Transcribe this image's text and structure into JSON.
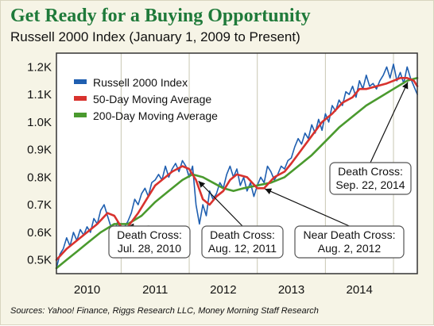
{
  "title": "Get Ready for a Buying Opportunity",
  "subtitle": "Russell 2000 Index (January 1, 2009 to Present)",
  "source": "Sources: Yahoo! Finance, Riggs Research LLC, Money Morning Staff Research",
  "colors": {
    "background": "#f6f4e6",
    "title": "#1f7a3a",
    "russell": "#1f5fb0",
    "ma50": "#d8322e",
    "ma200": "#4a9a2e",
    "grid": "#c9c7b2"
  },
  "chart_data": {
    "type": "line",
    "ylim": [
      0.45,
      1.25
    ],
    "xlim": [
      2009.55,
      2014.85
    ],
    "y_ticks": [
      {
        "value": 0.5,
        "label": "0.5K"
      },
      {
        "value": 0.6,
        "label": "0.6K"
      },
      {
        "value": 0.7,
        "label": "0.7K"
      },
      {
        "value": 0.8,
        "label": "0.8K"
      },
      {
        "value": 0.9,
        "label": "0.9K"
      },
      {
        "value": 1.0,
        "label": "1.0K"
      },
      {
        "value": 1.1,
        "label": "1.1K"
      },
      {
        "value": 1.2,
        "label": "1.2K"
      }
    ],
    "x_ticks": [
      {
        "value": 2010,
        "label": "2010"
      },
      {
        "value": 2011,
        "label": "2011"
      },
      {
        "value": 2012,
        "label": "2012"
      },
      {
        "value": 2013,
        "label": "2013"
      },
      {
        "value": 2014,
        "label": "2014"
      }
    ],
    "grid": "vertical",
    "legend": "top-left",
    "series": [
      {
        "name": "Russell 2000 Index",
        "color": "#1f5fb0",
        "x": [
          2009.55,
          2009.6,
          2009.65,
          2009.7,
          2009.75,
          2009.8,
          2009.85,
          2009.9,
          2009.95,
          2010.0,
          2010.05,
          2010.1,
          2010.15,
          2010.2,
          2010.25,
          2010.3,
          2010.35,
          2010.4,
          2010.45,
          2010.5,
          2010.55,
          2010.6,
          2010.65,
          2010.7,
          2010.75,
          2010.8,
          2010.85,
          2010.9,
          2010.95,
          2011.0,
          2011.05,
          2011.1,
          2011.15,
          2011.2,
          2011.25,
          2011.3,
          2011.35,
          2011.4,
          2011.45,
          2011.5,
          2011.55,
          2011.6,
          2011.65,
          2011.7,
          2011.75,
          2011.8,
          2011.85,
          2011.9,
          2011.95,
          2012.0,
          2012.05,
          2012.1,
          2012.15,
          2012.2,
          2012.25,
          2012.3,
          2012.35,
          2012.4,
          2012.45,
          2012.5,
          2012.55,
          2012.6,
          2012.65,
          2012.7,
          2012.75,
          2012.8,
          2012.85,
          2012.9,
          2012.95,
          2013.0,
          2013.05,
          2013.1,
          2013.15,
          2013.2,
          2013.25,
          2013.3,
          2013.35,
          2013.4,
          2013.45,
          2013.5,
          2013.55,
          2013.6,
          2013.65,
          2013.7,
          2013.75,
          2013.8,
          2013.85,
          2013.9,
          2013.95,
          2014.0,
          2014.05,
          2014.1,
          2014.15,
          2014.2,
          2014.25,
          2014.3,
          2014.35,
          2014.4,
          2014.45,
          2014.5,
          2014.55,
          2014.6,
          2014.65,
          2014.7,
          2014.75,
          2014.8,
          2014.85
        ],
        "values": [
          0.47,
          0.52,
          0.54,
          0.58,
          0.55,
          0.6,
          0.57,
          0.61,
          0.59,
          0.62,
          0.6,
          0.65,
          0.63,
          0.68,
          0.7,
          0.66,
          0.62,
          0.6,
          0.64,
          0.6,
          0.62,
          0.64,
          0.67,
          0.72,
          0.7,
          0.74,
          0.76,
          0.73,
          0.78,
          0.79,
          0.81,
          0.79,
          0.84,
          0.8,
          0.83,
          0.85,
          0.82,
          0.86,
          0.84,
          0.8,
          0.84,
          0.7,
          0.63,
          0.7,
          0.66,
          0.75,
          0.72,
          0.74,
          0.78,
          0.76,
          0.81,
          0.84,
          0.8,
          0.83,
          0.77,
          0.8,
          0.75,
          0.78,
          0.73,
          0.77,
          0.8,
          0.78,
          0.84,
          0.82,
          0.79,
          0.81,
          0.84,
          0.83,
          0.86,
          0.87,
          0.91,
          0.94,
          0.92,
          0.96,
          0.94,
          0.99,
          0.96,
          1.01,
          0.97,
          1.03,
          1.0,
          1.06,
          1.04,
          1.08,
          1.06,
          1.11,
          1.1,
          1.13,
          1.09,
          1.15,
          1.12,
          1.17,
          1.13,
          1.14,
          1.12,
          1.15,
          1.17,
          1.2,
          1.16,
          1.21,
          1.15,
          1.18,
          1.14,
          1.2,
          1.16,
          1.13,
          1.1
        ]
      },
      {
        "name": "50-Day Moving Average",
        "color": "#d8322e",
        "x": [
          2009.55,
          2009.7,
          2009.85,
          2010.0,
          2010.15,
          2010.3,
          2010.4,
          2010.5,
          2010.6,
          2010.75,
          2010.9,
          2011.0,
          2011.1,
          2011.25,
          2011.4,
          2011.5,
          2011.6,
          2011.7,
          2011.8,
          2011.9,
          2012.0,
          2012.1,
          2012.2,
          2012.35,
          2012.5,
          2012.6,
          2012.75,
          2012.9,
          2013.0,
          2013.15,
          2013.3,
          2013.45,
          2013.6,
          2013.75,
          2013.9,
          2014.0,
          2014.1,
          2014.25,
          2014.4,
          2014.5,
          2014.6,
          2014.7,
          2014.8,
          2014.85
        ],
        "values": [
          0.5,
          0.54,
          0.57,
          0.6,
          0.63,
          0.67,
          0.66,
          0.62,
          0.62,
          0.67,
          0.73,
          0.77,
          0.79,
          0.82,
          0.84,
          0.83,
          0.79,
          0.72,
          0.7,
          0.73,
          0.75,
          0.79,
          0.81,
          0.8,
          0.76,
          0.76,
          0.8,
          0.82,
          0.85,
          0.9,
          0.95,
          1.0,
          1.03,
          1.07,
          1.09,
          1.12,
          1.12,
          1.13,
          1.14,
          1.15,
          1.16,
          1.16,
          1.15,
          1.13
        ]
      },
      {
        "name": "200-Day Moving Average",
        "color": "#4a9a2e",
        "x": [
          2009.55,
          2009.7,
          2009.85,
          2010.0,
          2010.2,
          2010.4,
          2010.6,
          2010.8,
          2011.0,
          2011.2,
          2011.4,
          2011.55,
          2011.7,
          2011.85,
          2012.0,
          2012.15,
          2012.3,
          2012.5,
          2012.7,
          2012.9,
          2013.1,
          2013.3,
          2013.5,
          2013.7,
          2013.9,
          2014.1,
          2014.3,
          2014.5,
          2014.7,
          2014.85
        ],
        "values": [
          0.47,
          0.5,
          0.53,
          0.56,
          0.6,
          0.63,
          0.63,
          0.66,
          0.71,
          0.75,
          0.79,
          0.81,
          0.8,
          0.78,
          0.76,
          0.75,
          0.76,
          0.77,
          0.78,
          0.8,
          0.84,
          0.88,
          0.93,
          0.98,
          1.02,
          1.06,
          1.09,
          1.12,
          1.15,
          1.16
        ]
      }
    ],
    "annotations": [
      {
        "lines": [
          "Death Cross:",
          "Jul. 28, 2010"
        ],
        "x": 2010.57,
        "y": 0.62
      },
      {
        "lines": [
          "Death Cross:",
          "Aug. 12, 2011"
        ],
        "x": 2011.62,
        "y": 0.79
      },
      {
        "lines": [
          "Near Death Cross:",
          "Aug. 2, 2012"
        ],
        "x": 2012.59,
        "y": 0.76
      },
      {
        "lines": [
          "Death Cross:",
          "Sep. 22, 2014"
        ],
        "x": 2014.72,
        "y": 1.15
      }
    ]
  }
}
